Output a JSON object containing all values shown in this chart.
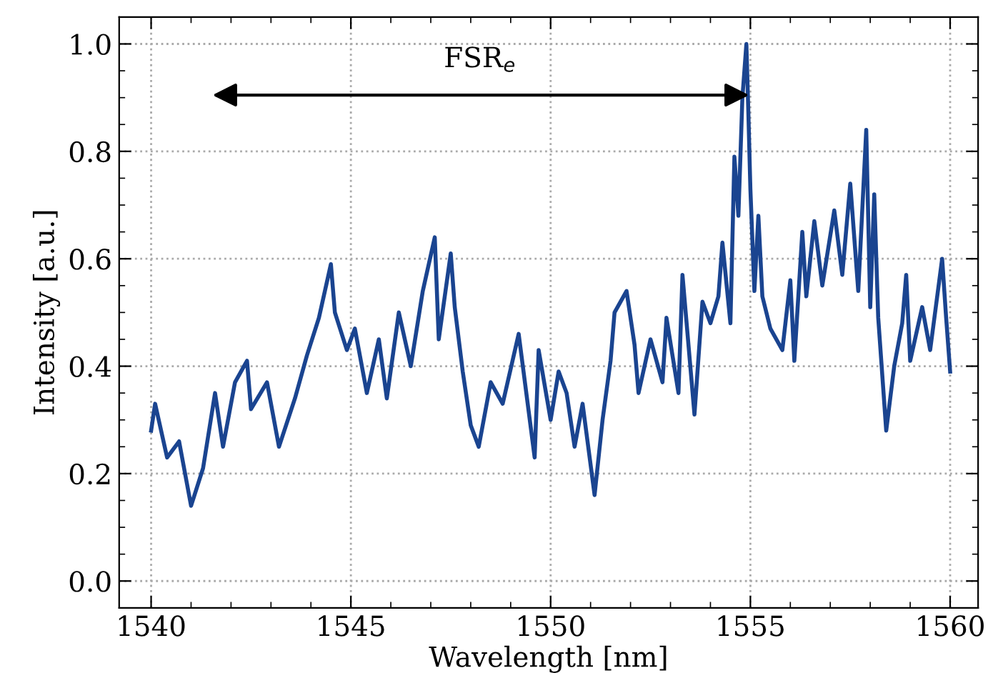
{
  "chart_data": {
    "type": "line",
    "xlabel": "Wavelength [nm]",
    "ylabel": "Intensity [a.u.]",
    "annotations": [
      "FSR$_{e}$"
    ],
    "xlim": [
      1539.2,
      1560.7
    ],
    "xticks": [
      1540,
      1545,
      1550,
      1555,
      1560
    ],
    "ylim": [
      -0.05,
      1.05
    ],
    "yticks": [
      {
        "value": 0,
        "label": "0.0"
      },
      0.2,
      0.4,
      0.6,
      0.8,
      {
        "value": 1,
        "label": "1.0"
      }
    ],
    "grid": true,
    "line_style": "solid",
    "marker": "none",
    "series": [
      {
        "color": "#1a4490",
        "x": [
          1540.0,
          1540.1,
          1540.4,
          1540.7,
          1541.0,
          1541.3,
          1541.6,
          1541.8,
          1542.1,
          1542.4,
          1542.5,
          1542.9,
          1543.2,
          1543.6,
          1543.9,
          1544.2,
          1544.5,
          1544.6,
          1544.9,
          1545.1,
          1545.4,
          1545.7,
          1545.9,
          1546.2,
          1546.5,
          1546.8,
          1547.1,
          1547.2,
          1547.5,
          1547.6,
          1547.8,
          1548.0,
          1548.2,
          1548.5,
          1548.8,
          1549.2,
          1549.6,
          1549.7,
          1550.0,
          1550.2,
          1550.4,
          1550.6,
          1550.8,
          1551.1,
          1551.3,
          1551.5,
          1551.6,
          1551.9,
          1552.1,
          1552.2,
          1552.5,
          1552.8,
          1552.9,
          1553.2,
          1553.3,
          1553.6,
          1553.8,
          1554.0,
          1554.2,
          1554.3,
          1554.5,
          1554.6,
          1554.7,
          1554.8,
          1554.9,
          1554.95,
          1555.0,
          1555.1,
          1555.2,
          1555.3,
          1555.5,
          1555.8,
          1556.0,
          1556.1,
          1556.3,
          1556.4,
          1556.6,
          1556.8,
          1557.1,
          1557.3,
          1557.5,
          1557.7,
          1557.9,
          1558.0,
          1558.1,
          1558.2,
          1558.4,
          1558.6,
          1558.8,
          1558.9,
          1559.0,
          1559.3,
          1559.5,
          1559.8,
          1559.9,
          1560.0
        ],
        "values": [
          0.28,
          0.33,
          0.23,
          0.26,
          0.14,
          0.21,
          0.35,
          0.25,
          0.37,
          0.41,
          0.32,
          0.37,
          0.25,
          0.34,
          0.42,
          0.49,
          0.59,
          0.5,
          0.43,
          0.47,
          0.35,
          0.45,
          0.34,
          0.5,
          0.4,
          0.54,
          0.64,
          0.45,
          0.61,
          0.51,
          0.39,
          0.29,
          0.25,
          0.37,
          0.33,
          0.46,
          0.23,
          0.43,
          0.3,
          0.39,
          0.35,
          0.25,
          0.33,
          0.16,
          0.3,
          0.41,
          0.5,
          0.54,
          0.44,
          0.35,
          0.45,
          0.37,
          0.49,
          0.35,
          0.57,
          0.31,
          0.52,
          0.48,
          0.53,
          0.63,
          0.48,
          0.79,
          0.68,
          0.9,
          1.0,
          0.87,
          0.73,
          0.54,
          0.68,
          0.53,
          0.47,
          0.43,
          0.56,
          0.41,
          0.65,
          0.53,
          0.67,
          0.55,
          0.69,
          0.57,
          0.74,
          0.54,
          0.84,
          0.51,
          0.72,
          0.49,
          0.28,
          0.4,
          0.48,
          0.57,
          0.41,
          0.51,
          0.43,
          0.6,
          0.49,
          0.39
        ]
      }
    ]
  }
}
